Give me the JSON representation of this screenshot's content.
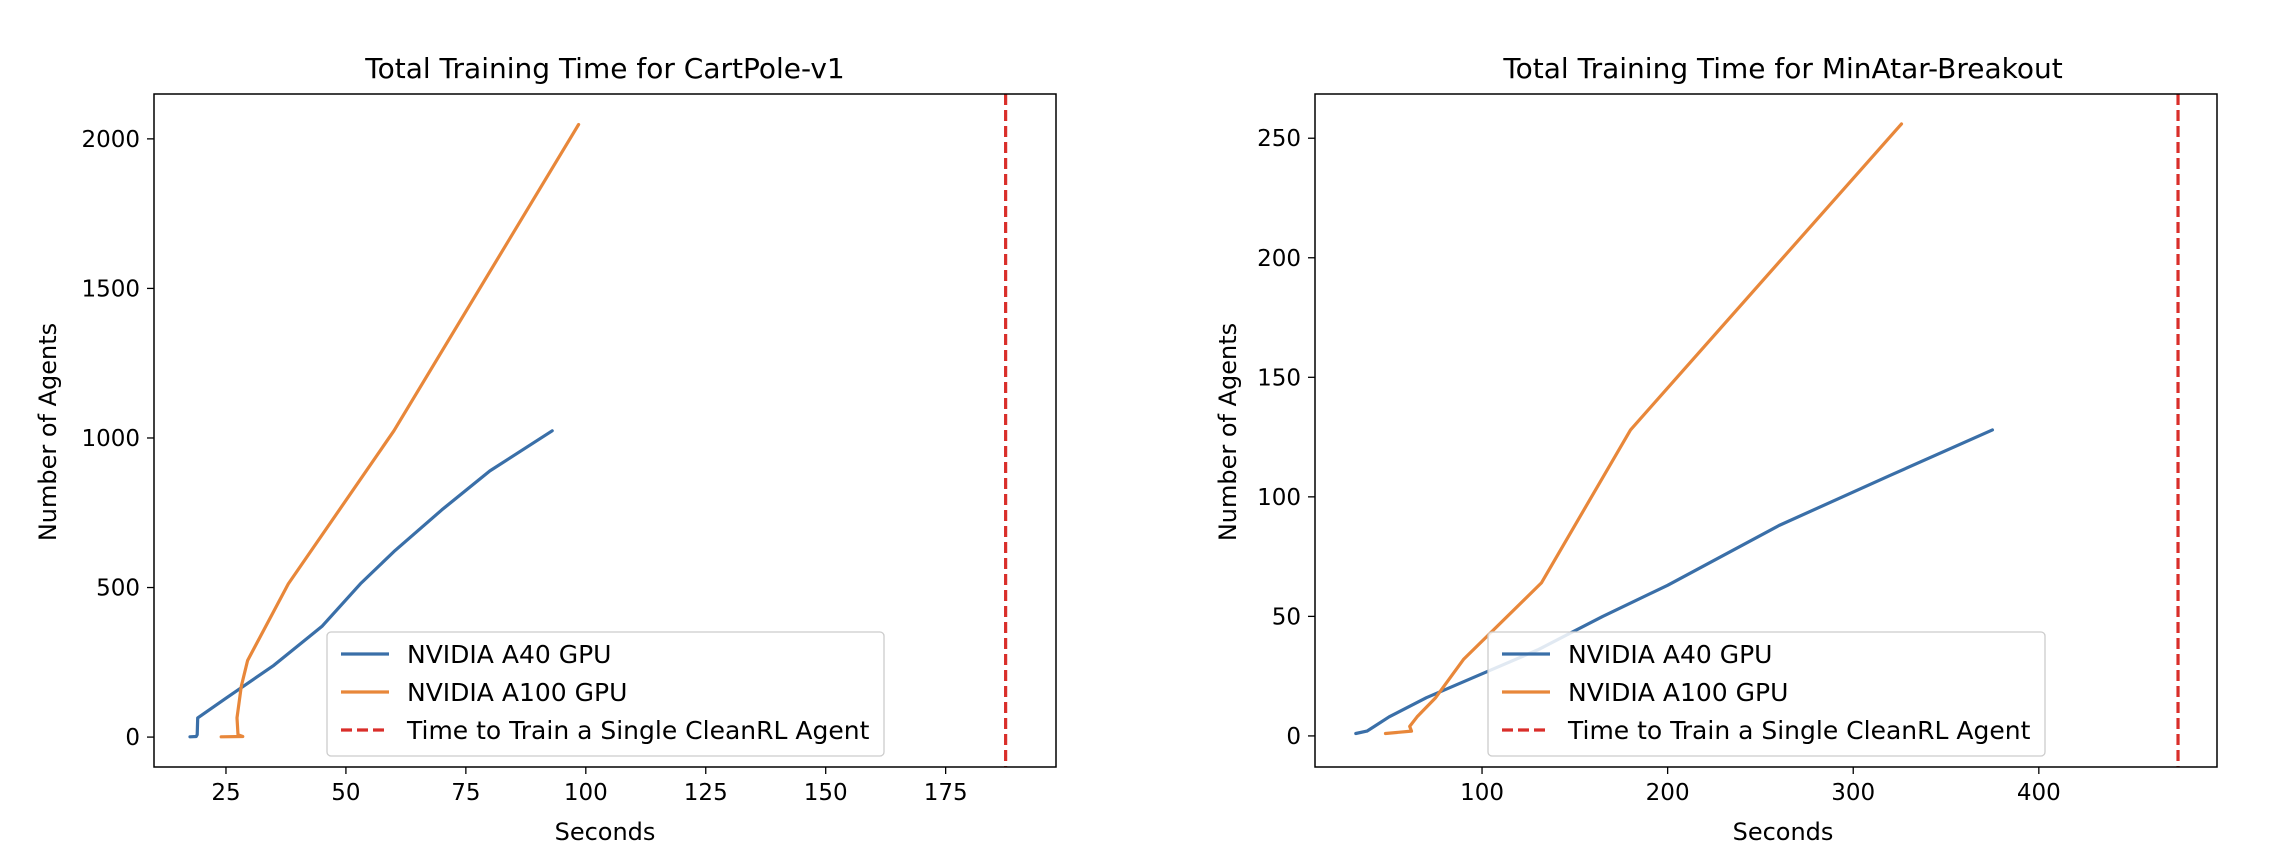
{
  "chart_data": [
    {
      "type": "line",
      "title": "Total Training Time for CartPole-v1",
      "xlabel": "Seconds",
      "ylabel": "Number of Agents",
      "xlim": [
        10,
        198
      ],
      "ylim": [
        -100,
        2150
      ],
      "xticks": [
        25,
        50,
        75,
        100,
        125,
        150,
        175
      ],
      "yticks": [
        0,
        500,
        1000,
        1500,
        2000
      ],
      "grid": false,
      "legend_position": "lower-center",
      "series": [
        {
          "name": "NVIDIA A40 GPU",
          "color": "#3a6fa8",
          "style": "solid",
          "x": [
            17.5,
            18.8,
            19.0,
            19.1,
            25,
            35,
            45,
            53,
            60,
            70,
            80,
            93
          ],
          "y": [
            1,
            2,
            8,
            64,
            130,
            240,
            370,
            512,
            620,
            760,
            890,
            1024
          ]
        },
        {
          "name": "NVIDIA A100 GPU",
          "color": "#e8873a",
          "style": "solid",
          "x": [
            24,
            28.5,
            27.5,
            27.3,
            28.2,
            29.5,
            38,
            60,
            98.5
          ],
          "y": [
            1,
            2,
            8,
            64,
            170,
            256,
            512,
            1024,
            2048
          ]
        },
        {
          "name": "Time to Train a Single CleanRL Agent",
          "color": "#d92e2a",
          "style": "dashed",
          "vline_x": 187.5
        }
      ]
    },
    {
      "type": "line",
      "title": "Total Training Time for MinAtar-Breakout",
      "xlabel": "Seconds",
      "ylabel": "Number of Agents",
      "xlim": [
        10,
        496
      ],
      "ylim": [
        -13,
        268.5
      ],
      "xticks": [
        100,
        200,
        300,
        400
      ],
      "yticks": [
        0,
        50,
        100,
        150,
        200,
        250
      ],
      "grid": false,
      "legend_position": "lower-center",
      "series": [
        {
          "name": "NVIDIA A40 GPU",
          "color": "#3a6fa8",
          "style": "solid",
          "x": [
            32,
            38,
            42,
            50,
            70,
            100,
            130,
            165,
            200,
            260,
            320,
            375
          ],
          "y": [
            1,
            2,
            4,
            8,
            16,
            26,
            36,
            50,
            63,
            88,
            109,
            128
          ]
        },
        {
          "name": "NVIDIA A100 GPU",
          "color": "#e8873a",
          "style": "solid",
          "x": [
            48,
            62,
            61,
            65,
            75,
            90,
            132,
            180,
            326
          ],
          "y": [
            1,
            2,
            4,
            8,
            16,
            32,
            64,
            128,
            256
          ]
        },
        {
          "name": "Time to Train a Single CleanRL Agent",
          "color": "#d92e2a",
          "style": "dashed",
          "vline_x": 475
        }
      ]
    }
  ]
}
